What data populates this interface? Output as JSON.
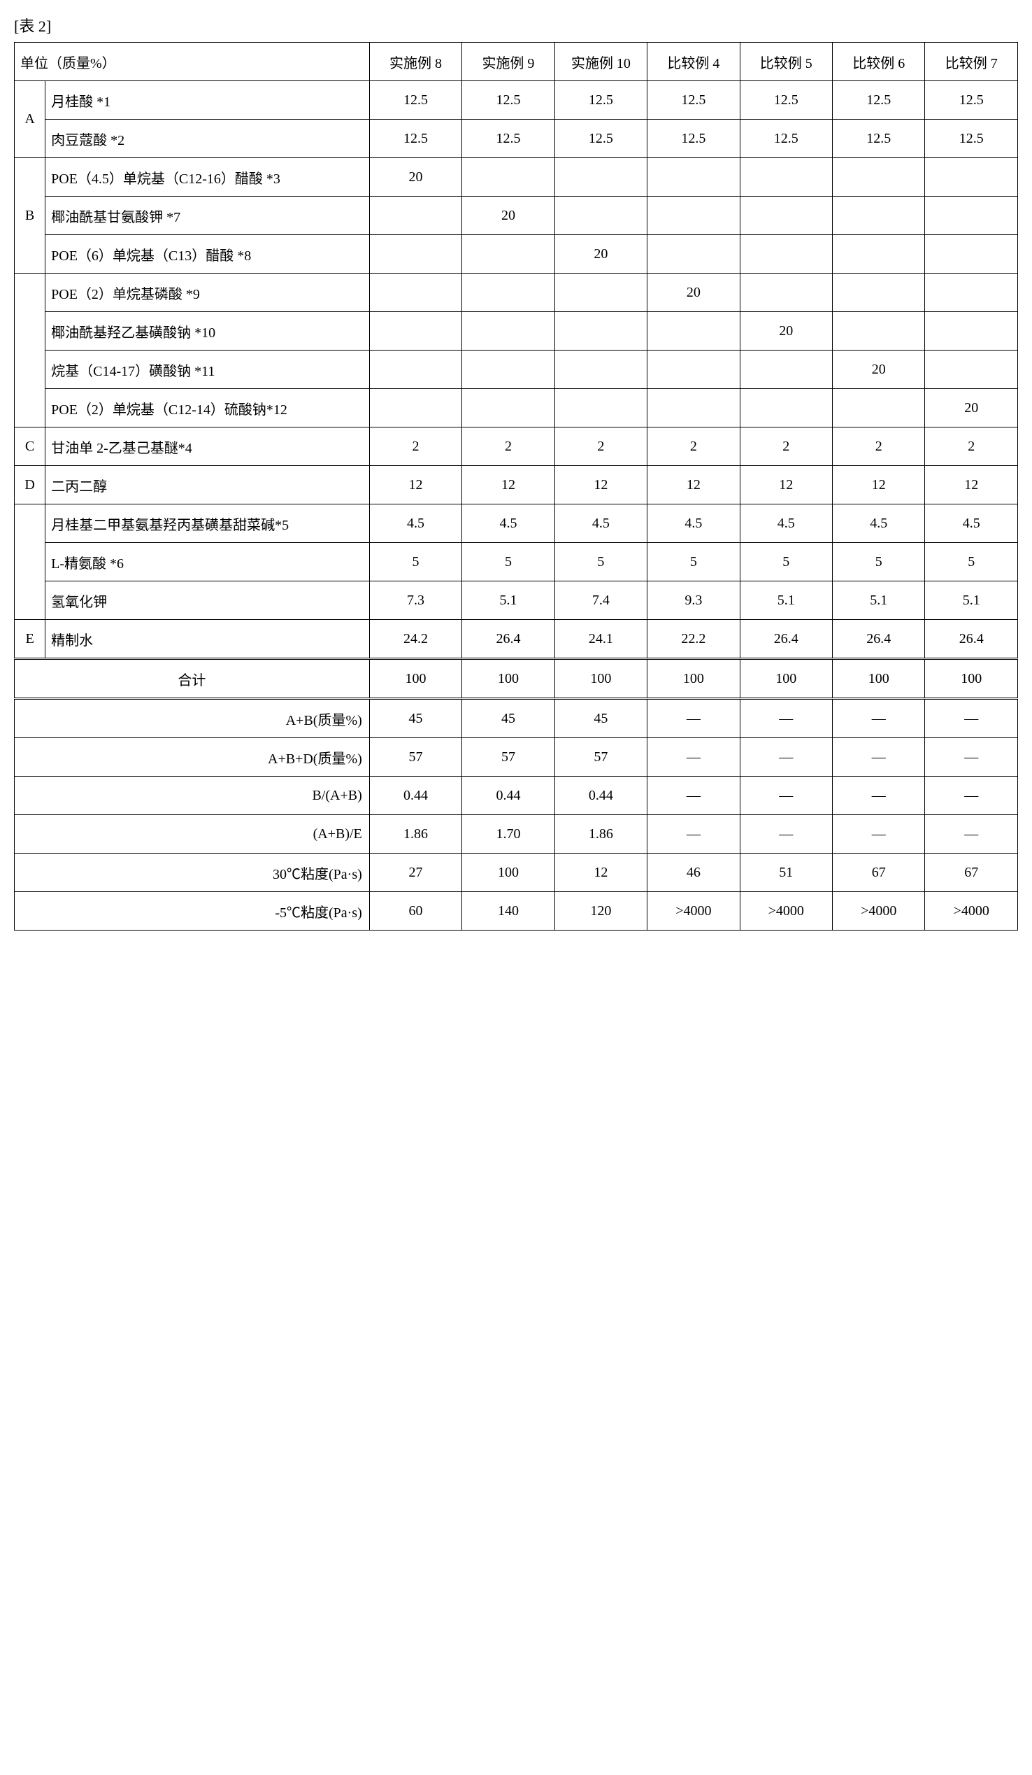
{
  "caption": "[表 2]",
  "headers": {
    "unit": "单位（质量%）",
    "cols": [
      "实施例 8",
      "实施例 9",
      "实施例 10",
      "比较例 4",
      "比较例 5",
      "比较例 6",
      "比较例 7"
    ]
  },
  "groups": [
    {
      "label": "A",
      "rows": [
        {
          "name": "月桂酸 *1",
          "v": [
            "12.5",
            "12.5",
            "12.5",
            "12.5",
            "12.5",
            "12.5",
            "12.5"
          ]
        },
        {
          "name": "肉豆蔻酸 *2",
          "v": [
            "12.5",
            "12.5",
            "12.5",
            "12.5",
            "12.5",
            "12.5",
            "12.5"
          ]
        }
      ]
    },
    {
      "label": "B",
      "rows": [
        {
          "name": "POE（4.5）单烷基（C12-16）醋酸 *3",
          "v": [
            "20",
            "",
            "",
            "",
            "",
            "",
            ""
          ]
        },
        {
          "name": "椰油酰基甘氨酸钾 *7",
          "v": [
            "",
            "20",
            "",
            "",
            "",
            "",
            ""
          ]
        },
        {
          "name": "POE（6）单烷基（C13）醋酸 *8",
          "v": [
            "",
            "",
            "20",
            "",
            "",
            "",
            ""
          ]
        }
      ]
    },
    {
      "label": "",
      "rows": [
        {
          "name": "POE（2）单烷基磷酸 *9",
          "v": [
            "",
            "",
            "",
            "20",
            "",
            "",
            ""
          ]
        },
        {
          "name": "椰油酰基羟乙基磺酸钠 *10",
          "v": [
            "",
            "",
            "",
            "",
            "20",
            "",
            ""
          ]
        },
        {
          "name": "烷基（C14-17）磺酸钠 *11",
          "v": [
            "",
            "",
            "",
            "",
            "",
            "20",
            ""
          ]
        },
        {
          "name": "POE（2）单烷基（C12-14）硫酸钠*12",
          "v": [
            "",
            "",
            "",
            "",
            "",
            "",
            "20"
          ]
        }
      ]
    },
    {
      "label": "C",
      "rows": [
        {
          "name": "甘油单 2-乙基己基醚*4",
          "v": [
            "2",
            "2",
            "2",
            "2",
            "2",
            "2",
            "2"
          ]
        }
      ]
    },
    {
      "label": "D",
      "rows": [
        {
          "name": "二丙二醇",
          "v": [
            "12",
            "12",
            "12",
            "12",
            "12",
            "12",
            "12"
          ]
        }
      ]
    },
    {
      "label": "",
      "rows": [
        {
          "name": "月桂基二甲基氨基羟丙基磺基甜菜碱*5",
          "v": [
            "4.5",
            "4.5",
            "4.5",
            "4.5",
            "4.5",
            "4.5",
            "4.5"
          ]
        },
        {
          "name": "L-精氨酸 *6",
          "v": [
            "5",
            "5",
            "5",
            "5",
            "5",
            "5",
            "5"
          ]
        },
        {
          "name": "氢氧化钾",
          "v": [
            "7.3",
            "5.1",
            "7.4",
            "9.3",
            "5.1",
            "5.1",
            "5.1"
          ]
        }
      ]
    },
    {
      "label": "E",
      "rows": [
        {
          "name": "精制水",
          "v": [
            "24.2",
            "26.4",
            "24.1",
            "22.2",
            "26.4",
            "26.4",
            "26.4"
          ]
        }
      ]
    }
  ],
  "totalRow": {
    "name": "合计",
    "v": [
      "100",
      "100",
      "100",
      "100",
      "100",
      "100",
      "100"
    ]
  },
  "summary": [
    {
      "name": "A+B(质量%)",
      "v": [
        "45",
        "45",
        "45",
        "—",
        "—",
        "—",
        "—"
      ]
    },
    {
      "name": "A+B+D(质量%)",
      "v": [
        "57",
        "57",
        "57",
        "—",
        "—",
        "—",
        "—"
      ]
    },
    {
      "name": "B/(A+B)",
      "v": [
        "0.44",
        "0.44",
        "0.44",
        "—",
        "—",
        "—",
        "—"
      ]
    },
    {
      "name": "(A+B)/E",
      "v": [
        "1.86",
        "1.70",
        "1.86",
        "—",
        "—",
        "—",
        "—"
      ]
    },
    {
      "name": "30℃粘度(Pa·s)",
      "v": [
        "27",
        "100",
        "12",
        "46",
        "51",
        "67",
        "67"
      ]
    },
    {
      "name": "-5℃粘度(Pa·s)",
      "v": [
        "60",
        "140",
        "120",
        ">4000",
        ">4000",
        ">4000",
        ">4000"
      ]
    }
  ],
  "style": {
    "background": "#ffffff",
    "text_color": "#000000",
    "border_color": "#000000",
    "font_family": "SimSun",
    "header_fontsize": 20,
    "cell_fontsize": 20
  }
}
